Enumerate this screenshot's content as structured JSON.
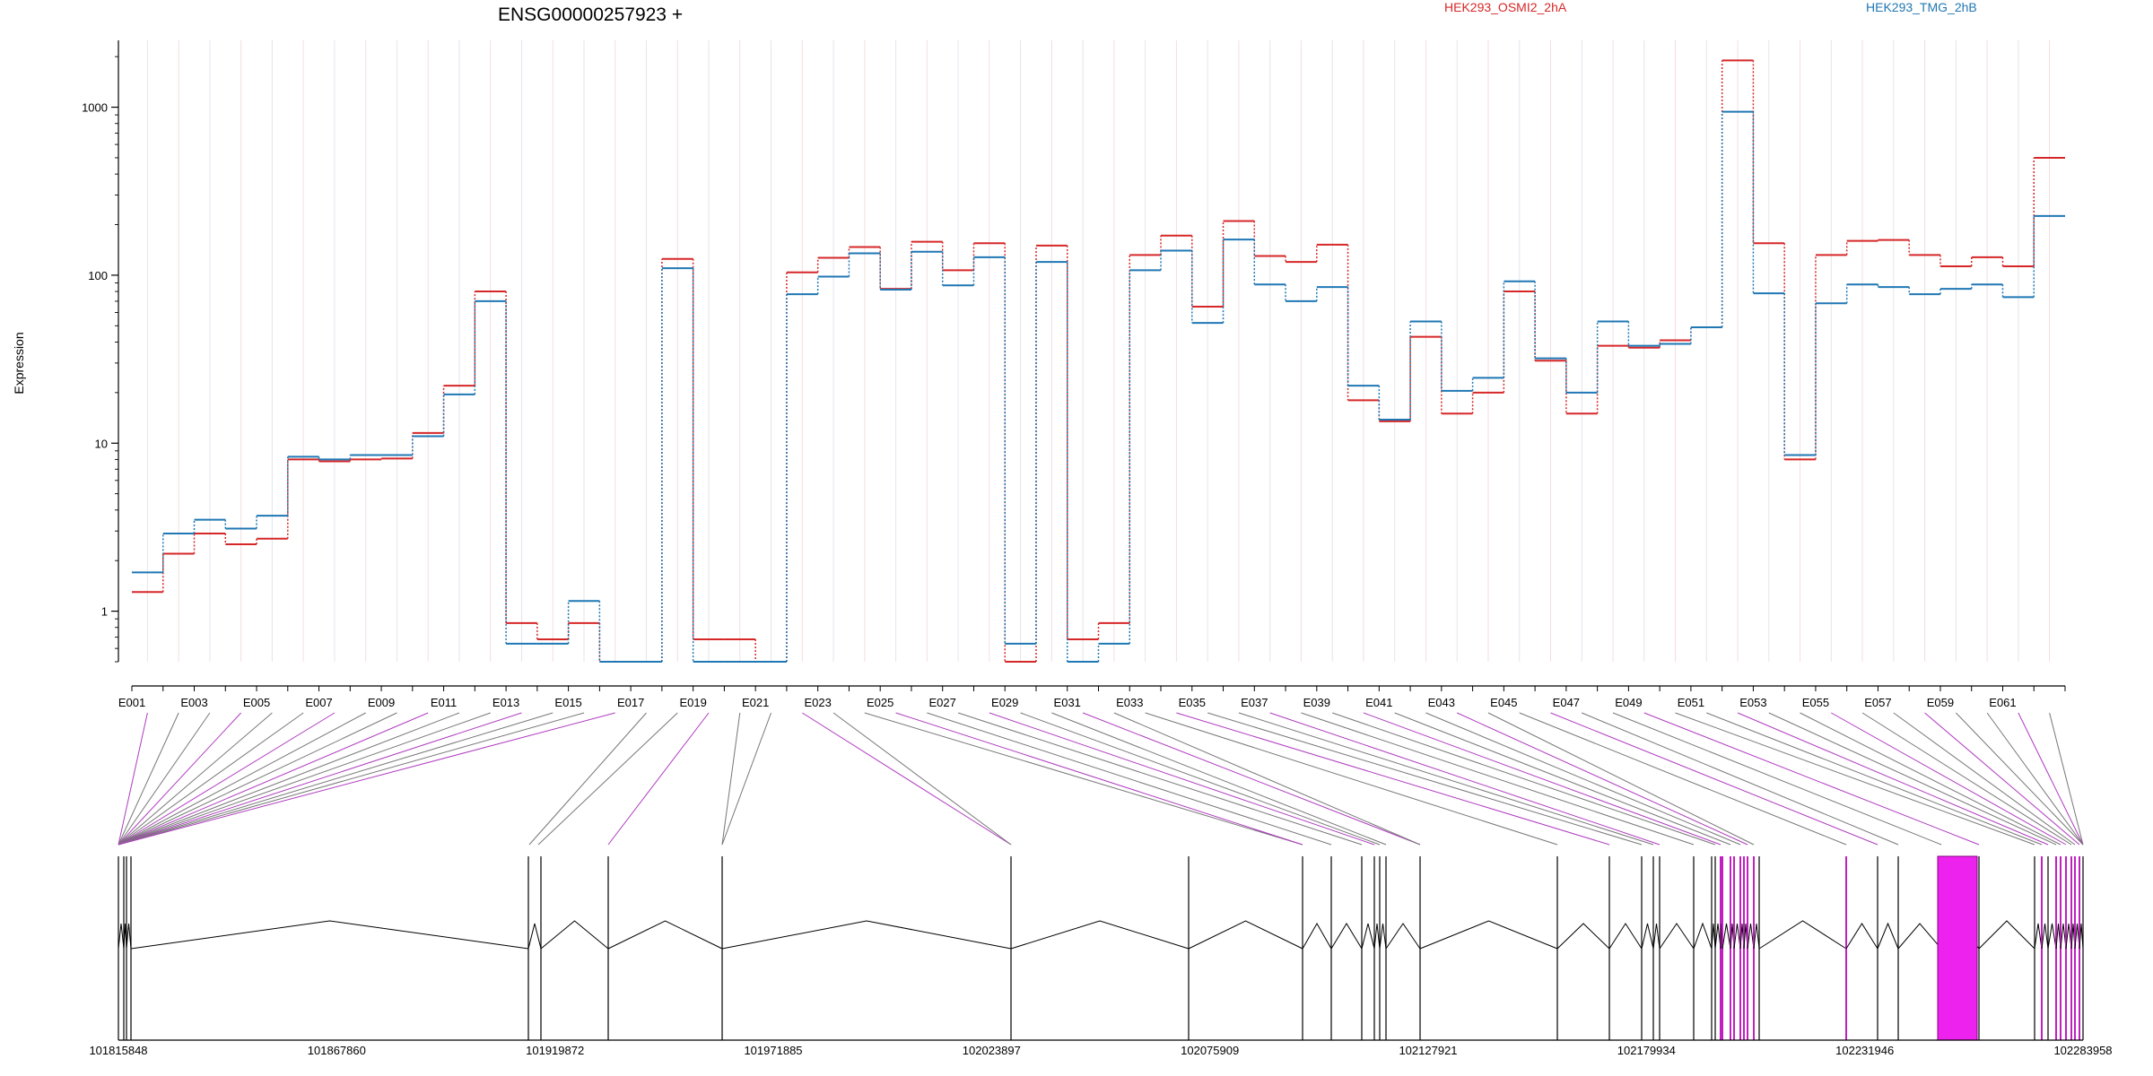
{
  "chart_data": {
    "type": "line",
    "title": "ENSG00000257923 +",
    "ylabel": "Expression",
    "y_scale": "log",
    "ylim": [
      0.5,
      2500
    ],
    "y_ticks": [
      1,
      10,
      100,
      1000
    ],
    "y_tick_labels": [
      "1",
      "10",
      "100",
      "1000"
    ],
    "categories": [
      "E001",
      "E002",
      "E003",
      "E004",
      "E005",
      "E006",
      "E007",
      "E008",
      "E009",
      "E010",
      "E011",
      "E012",
      "E013",
      "E014",
      "E015",
      "E016",
      "E017",
      "E018",
      "E019",
      "E020",
      "E021",
      "E022",
      "E023",
      "E024",
      "E025",
      "E026",
      "E027",
      "E028",
      "E029",
      "E030",
      "E031",
      "E032",
      "E033",
      "E034",
      "E035",
      "E036",
      "E037",
      "E038",
      "E039",
      "E040",
      "E041",
      "E042",
      "E043",
      "E044",
      "E045",
      "E046",
      "E047",
      "E048",
      "E049",
      "E050",
      "E051",
      "E052",
      "E053",
      "E054",
      "E055",
      "E056",
      "E057",
      "E058",
      "E059",
      "E060",
      "E061",
      "E062"
    ],
    "x_tick_labels": [
      "E001",
      "E003",
      "E005",
      "E007",
      "E009",
      "E011",
      "E013",
      "E015",
      "E017",
      "E019",
      "E021",
      "E023",
      "E025",
      "E027",
      "E029",
      "E031",
      "E033",
      "E035",
      "E037",
      "E039",
      "E041",
      "E043",
      "E045",
      "E047",
      "E049",
      "E051",
      "E053",
      "E055",
      "E057",
      "E059",
      "E061"
    ],
    "legend_position": "top",
    "grid": "vertical",
    "series": [
      {
        "name": "HEK293_OSMI2_2hA",
        "color": "#d62728",
        "values": [
          1.3,
          2.2,
          2.9,
          2.5,
          2.7,
          8.0,
          7.8,
          8.0,
          8.1,
          11.5,
          22,
          80,
          0.85,
          0.68,
          0.85,
          0.5,
          0.5,
          125,
          0.68,
          0.68,
          0.5,
          104,
          127,
          147,
          83,
          158,
          107,
          155,
          0.5,
          150,
          0.68,
          0.85,
          132,
          172,
          65,
          210,
          130,
          120,
          152,
          18,
          13.5,
          43,
          15,
          20,
          80,
          31,
          15,
          38,
          37,
          41,
          49,
          1900,
          155,
          8,
          132,
          160,
          162,
          132,
          113,
          128,
          113,
          500
        ]
      },
      {
        "name": "HEK293_TMG_2hB",
        "color": "#1f77b4",
        "values": [
          1.7,
          2.9,
          3.5,
          3.1,
          3.7,
          8.3,
          8.0,
          8.5,
          8.5,
          11.0,
          19.5,
          70,
          0.64,
          0.64,
          1.15,
          0.5,
          0.5,
          110,
          0.5,
          0.5,
          0.5,
          77,
          98,
          135,
          82,
          138,
          87,
          128,
          0.64,
          120,
          0.5,
          0.64,
          107,
          140,
          52,
          163,
          88,
          70,
          85,
          22,
          13.8,
          53,
          20.5,
          24.5,
          92,
          32,
          20,
          53,
          38,
          39,
          49,
          940,
          78,
          8.5,
          68,
          88,
          85,
          77,
          83,
          88,
          74,
          225
        ]
      }
    ]
  },
  "gene_track": {
    "coord_labels": [
      "101815848",
      "101867860",
      "101919872",
      "101971885",
      "102023897",
      "102075909",
      "102127921",
      "102179934",
      "102231946",
      "102283958"
    ],
    "exon_color_highlight": "#ee22ee",
    "exon_color_default": "#000000"
  }
}
